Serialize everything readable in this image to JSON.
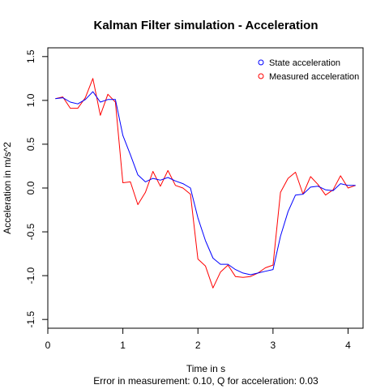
{
  "chart_data": {
    "type": "line",
    "title": "Kalman Filter simulation - Acceleration",
    "xlabel": "Time in s",
    "subtitle": "Error in measurement: 0.10, Q for acceleration: 0.03",
    "ylabel": "Acceleration in m/s^2",
    "xlim": [
      0,
      4.2
    ],
    "ylim": [
      -1.6,
      1.6
    ],
    "xticks": [
      0,
      1,
      2,
      3,
      4
    ],
    "xtick_labels": [
      "0",
      "1",
      "2",
      "3",
      "4"
    ],
    "yticks": [
      -1.5,
      -1.0,
      -0.5,
      0.0,
      0.5,
      1.0,
      1.5
    ],
    "ytick_labels": [
      "-1.5",
      "-1.0",
      "-0.5",
      "0.0",
      "0.5",
      "1.0",
      "1.5"
    ],
    "grid": false,
    "legend_position": "top-right",
    "x": [
      0.1,
      0.2,
      0.3,
      0.4,
      0.5,
      0.6,
      0.7,
      0.8,
      0.9,
      1.0,
      1.1,
      1.2,
      1.3,
      1.4,
      1.5,
      1.6,
      1.7,
      1.8,
      1.9,
      2.0,
      2.1,
      2.2,
      2.3,
      2.4,
      2.5,
      2.6,
      2.7,
      2.8,
      2.9,
      3.0,
      3.1,
      3.2,
      3.3,
      3.4,
      3.5,
      3.6,
      3.7,
      3.8,
      3.9,
      4.0,
      4.1
    ],
    "series": [
      {
        "name": "State acceleration",
        "color": "#0000ff",
        "values": [
          1.02,
          1.03,
          0.98,
          0.96,
          1.01,
          1.1,
          0.98,
          1.01,
          1.01,
          0.6,
          0.38,
          0.15,
          0.07,
          0.11,
          0.09,
          0.12,
          0.08,
          0.05,
          0.0,
          -0.34,
          -0.6,
          -0.8,
          -0.87,
          -0.87,
          -0.93,
          -0.97,
          -0.99,
          -0.97,
          -0.95,
          -0.93,
          -0.55,
          -0.27,
          -0.08,
          -0.07,
          0.01,
          0.02,
          -0.02,
          -0.03,
          0.05,
          0.03,
          0.03
        ]
      },
      {
        "name": "Measured acceleration",
        "color": "#ff0000",
        "values": [
          1.02,
          1.04,
          0.91,
          0.91,
          1.03,
          1.25,
          0.83,
          1.07,
          0.98,
          0.06,
          0.07,
          -0.19,
          -0.05,
          0.19,
          0.02,
          0.2,
          0.03,
          0.0,
          -0.07,
          -0.81,
          -0.89,
          -1.14,
          -0.96,
          -0.88,
          -1.01,
          -1.02,
          -1.01,
          -0.97,
          -0.91,
          -0.88,
          -0.05,
          0.11,
          0.18,
          -0.07,
          0.13,
          0.04,
          -0.08,
          -0.02,
          0.14,
          0.0,
          0.03
        ]
      }
    ]
  }
}
